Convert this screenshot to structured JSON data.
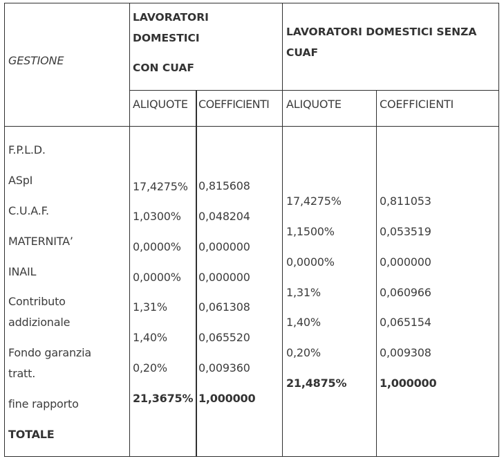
{
  "table": {
    "gestione_label": "GESTIONE",
    "group1": {
      "line1": "LAVORATORI",
      "line2": "DOMESTICI",
      "line3": "CON CUAF",
      "aliquote_label": "ALIQUOTE",
      "coefficienti_label": "COEFFICIENTI",
      "aliquote": [
        "17,4275%",
        "1,0300%",
        "0,0000%",
        "0,0000%",
        "1,31%",
        "1,40%",
        "0,20%"
      ],
      "coefficienti": [
        "0,815608",
        "0,048204",
        "0,000000",
        "0,000000",
        "0,061308",
        "0,065520",
        "0,009360"
      ],
      "total_aliquote": "21,3675%",
      "total_coefficienti": "1,000000"
    },
    "group2": {
      "line1": "LAVORATORI DOMESTICI SENZA",
      "line2": "CUAF",
      "aliquote_label": "ALIQUOTE",
      "coefficienti_label": "COEFFICIENTI",
      "aliquote": [
        "17,4275%",
        "1,1500%",
        "0,0000%",
        "1,31%",
        "1,40%",
        "0,20%"
      ],
      "coefficienti": [
        "0,811053",
        "0,053519",
        "0,000000",
        "0,060966",
        "0,065154",
        "0,009308"
      ],
      "total_aliquote": "21,4875%",
      "total_coefficienti": "1,000000"
    },
    "rows": [
      "F.P.L.D.",
      "ASpI",
      "C.U.A.F.",
      "MATERNITA’",
      "INAIL",
      "Contributo",
      "addizionale",
      "Fondo garanzia",
      "tratt.",
      "fine rapporto"
    ],
    "total_label": "TOTALE"
  }
}
